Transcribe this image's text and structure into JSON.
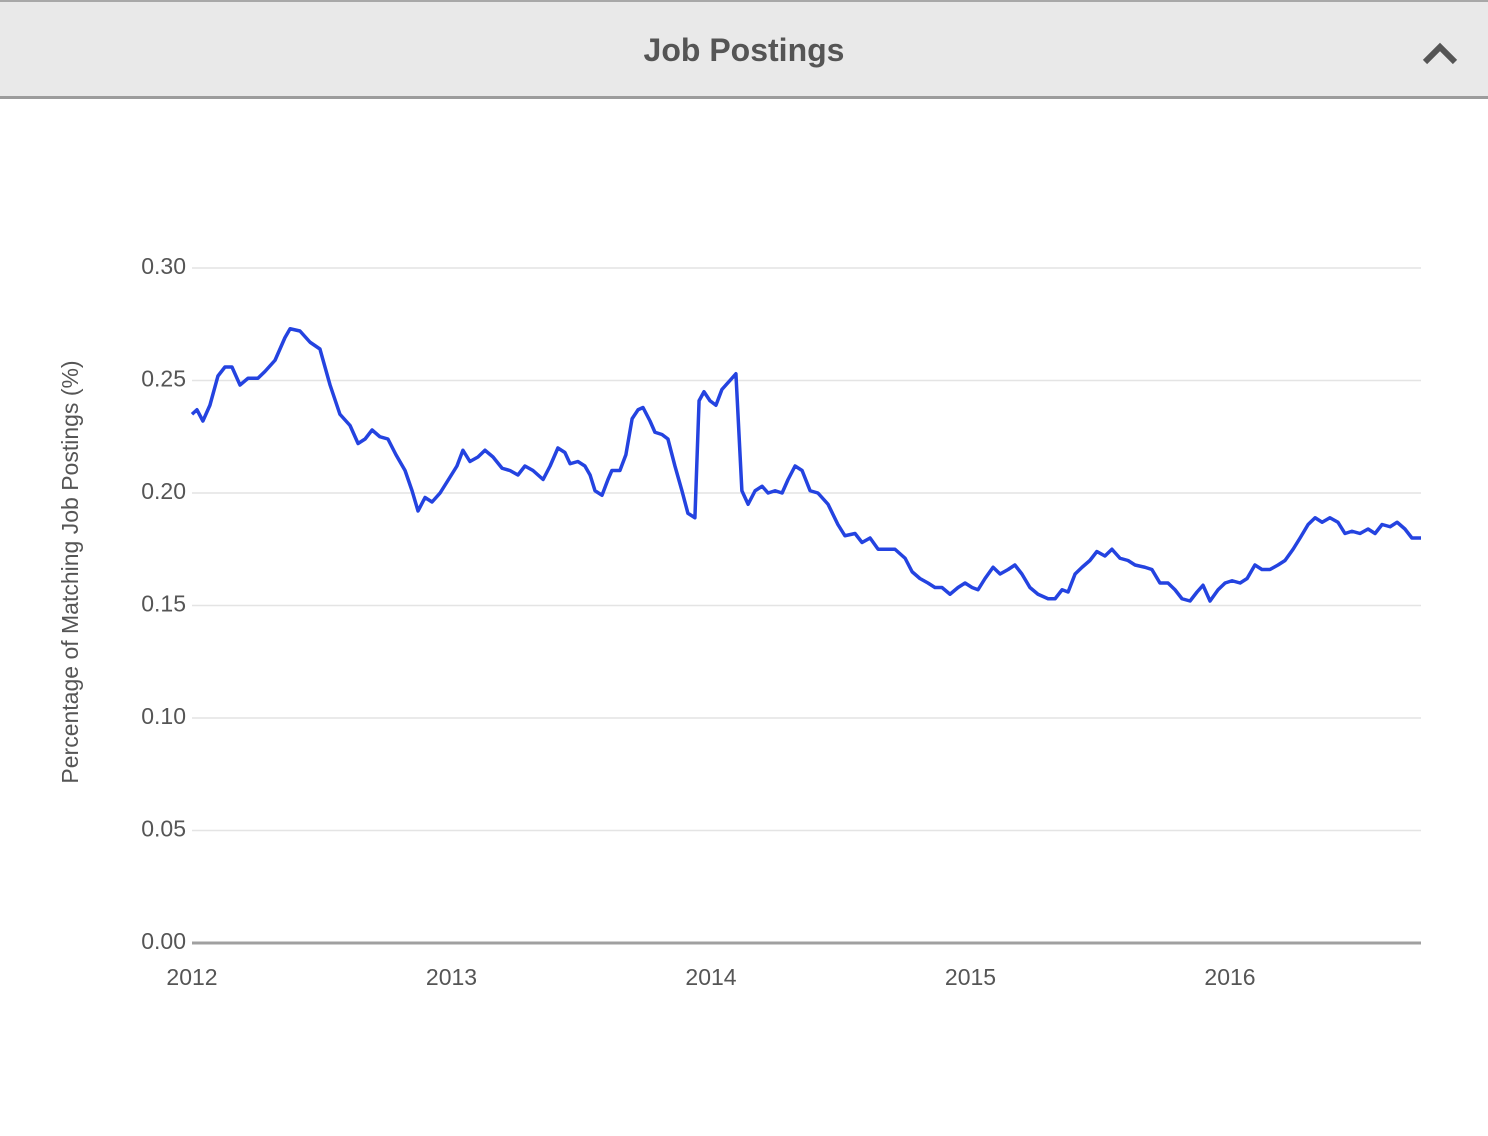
{
  "header": {
    "title": "Job Postings"
  },
  "chart_data": {
    "type": "line",
    "y_label": "Percentage of Matching Job Postings (%)",
    "x": [
      2012.0,
      2012.019,
      2012.042,
      2012.069,
      2012.1,
      2012.127,
      2012.154,
      2012.185,
      2012.216,
      2012.254,
      2012.281,
      2012.32,
      2012.358,
      2012.378,
      2012.416,
      2012.455,
      2012.493,
      2012.532,
      2012.57,
      2012.609,
      2012.64,
      2012.667,
      2012.694,
      2012.724,
      2012.755,
      2012.786,
      2012.821,
      2012.848,
      2012.871,
      2012.898,
      2012.925,
      2012.956,
      2012.994,
      2013.021,
      2013.044,
      2013.071,
      2013.102,
      2013.129,
      2013.16,
      2013.195,
      2013.225,
      2013.256,
      2013.283,
      2013.314,
      2013.353,
      2013.38,
      2013.41,
      2013.437,
      2013.457,
      2013.487,
      2013.514,
      2013.534,
      2013.553,
      2013.58,
      2013.603,
      2013.618,
      2013.649,
      2013.672,
      2013.696,
      2013.719,
      2013.738,
      2013.765,
      2013.784,
      2013.811,
      2013.834,
      2013.861,
      2013.888,
      2013.911,
      2013.938,
      2013.954,
      2013.973,
      2013.996,
      2014.019,
      2014.042,
      2014.073,
      2014.096,
      2014.119,
      2014.143,
      2014.17,
      2014.197,
      2014.22,
      2014.247,
      2014.274,
      2014.297,
      2014.324,
      2014.351,
      2014.382,
      2014.412,
      2014.451,
      2014.489,
      2014.516,
      2014.555,
      2014.582,
      2014.613,
      2014.644,
      2014.671,
      2014.709,
      2014.748,
      2014.775,
      2014.805,
      2014.836,
      2014.863,
      2014.89,
      2014.921,
      2014.952,
      2014.979,
      2015.006,
      2015.029,
      2015.056,
      2015.087,
      2015.114,
      2015.145,
      2015.171,
      2015.198,
      2015.229,
      2015.26,
      2015.299,
      2015.326,
      2015.353,
      2015.376,
      2015.403,
      2015.43,
      2015.46,
      2015.487,
      2015.518,
      2015.545,
      2015.576,
      2015.607,
      2015.634,
      2015.672,
      2015.699,
      2015.73,
      2015.761,
      2015.788,
      2015.815,
      2015.846,
      2015.873,
      2015.896,
      2015.923,
      2015.954,
      2015.981,
      2016.008,
      2016.039,
      2016.066,
      2016.096,
      2016.123,
      2016.154,
      2016.185,
      2016.212,
      2016.243,
      2016.27,
      2016.301,
      2016.328,
      2016.355,
      2016.385,
      2016.416,
      2016.443,
      2016.47,
      2016.501,
      2016.532,
      2016.559,
      2016.586,
      2016.617,
      2016.644,
      2016.674,
      2016.701,
      2016.736
    ],
    "series": [
      {
        "name": "Job Postings",
        "color": "#2443e0",
        "values": [
          0.235,
          0.237,
          0.232,
          0.239,
          0.252,
          0.256,
          0.256,
          0.248,
          0.251,
          0.251,
          0.254,
          0.259,
          0.269,
          0.273,
          0.272,
          0.267,
          0.264,
          0.248,
          0.235,
          0.23,
          0.222,
          0.224,
          0.228,
          0.225,
          0.224,
          0.217,
          0.21,
          0.201,
          0.192,
          0.198,
          0.196,
          0.2,
          0.207,
          0.212,
          0.219,
          0.214,
          0.216,
          0.219,
          0.216,
          0.211,
          0.21,
          0.208,
          0.212,
          0.21,
          0.206,
          0.212,
          0.22,
          0.218,
          0.213,
          0.214,
          0.212,
          0.208,
          0.201,
          0.199,
          0.206,
          0.21,
          0.21,
          0.217,
          0.233,
          0.237,
          0.238,
          0.232,
          0.227,
          0.226,
          0.224,
          0.212,
          0.201,
          0.191,
          0.189,
          0.241,
          0.245,
          0.241,
          0.239,
          0.246,
          0.25,
          0.253,
          0.201,
          0.195,
          0.201,
          0.203,
          0.2,
          0.201,
          0.2,
          0.206,
          0.212,
          0.21,
          0.201,
          0.2,
          0.195,
          0.186,
          0.181,
          0.182,
          0.178,
          0.18,
          0.175,
          0.175,
          0.175,
          0.171,
          0.165,
          0.162,
          0.16,
          0.158,
          0.158,
          0.155,
          0.158,
          0.16,
          0.158,
          0.157,
          0.162,
          0.167,
          0.164,
          0.166,
          0.168,
          0.164,
          0.158,
          0.155,
          0.153,
          0.153,
          0.157,
          0.156,
          0.164,
          0.167,
          0.17,
          0.174,
          0.172,
          0.175,
          0.171,
          0.17,
          0.168,
          0.167,
          0.166,
          0.16,
          0.16,
          0.157,
          0.153,
          0.152,
          0.156,
          0.159,
          0.152,
          0.157,
          0.16,
          0.161,
          0.16,
          0.162,
          0.168,
          0.166,
          0.166,
          0.168,
          0.17,
          0.175,
          0.18,
          0.186,
          0.189,
          0.187,
          0.189,
          0.187,
          0.182,
          0.183,
          0.182,
          0.184,
          0.182,
          0.186,
          0.185,
          0.187,
          0.184,
          0.18,
          0.18
        ]
      }
    ],
    "xlim": [
      2012,
      2016.736
    ],
    "xticks": [
      2012,
      2013,
      2014,
      2015,
      2016
    ],
    "ylim": [
      0,
      0.3
    ],
    "yticks": [
      {
        "value": 0,
        "label": "0.00"
      },
      0.05,
      {
        "value": 0.1,
        "label": "0.10"
      },
      0.15,
      {
        "value": 0.2,
        "label": "0.20"
      },
      0.25,
      {
        "value": 0.3,
        "label": "0.30"
      }
    ],
    "grid": true
  }
}
